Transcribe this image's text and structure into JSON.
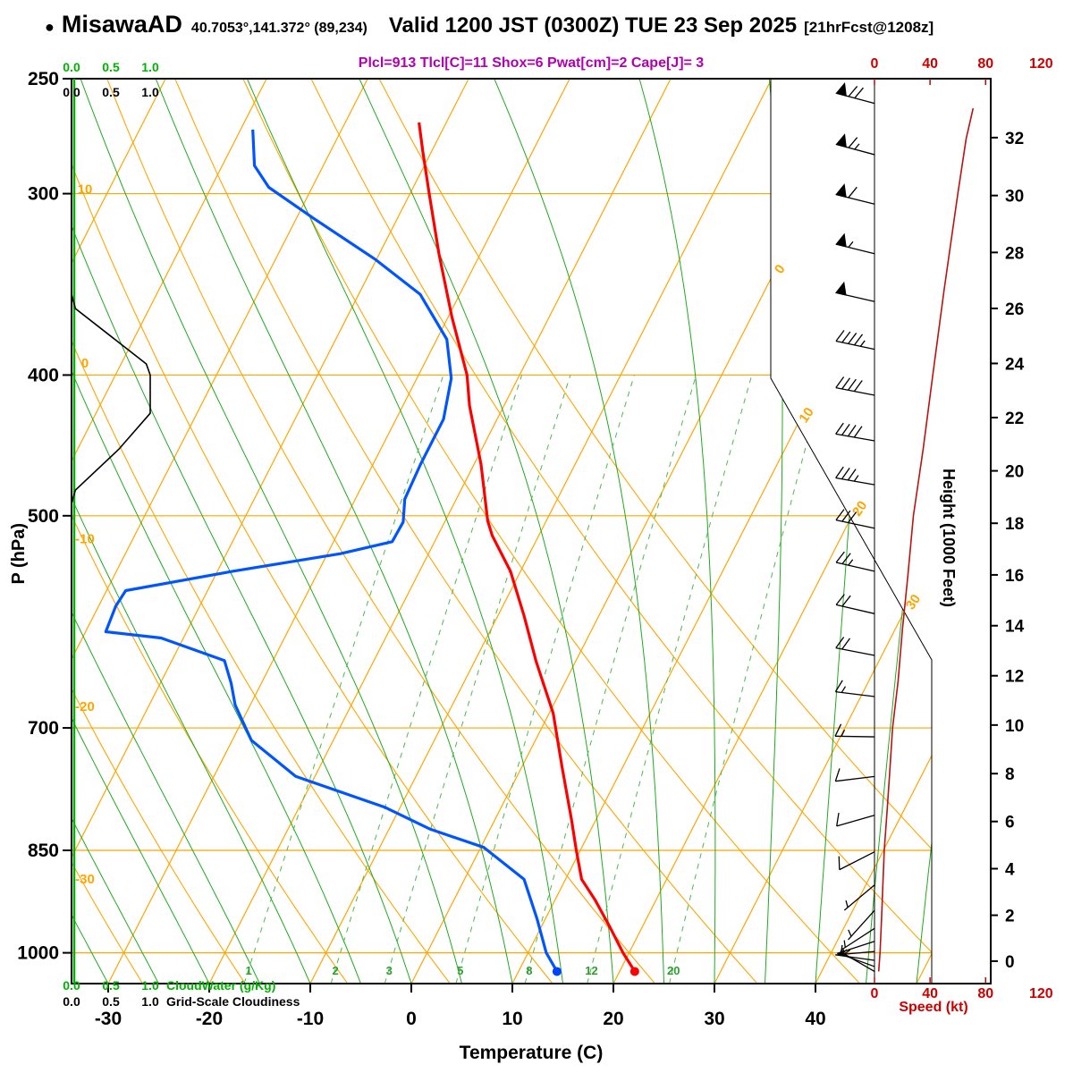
{
  "header": {
    "bullet": "●",
    "station": "MisawaAD",
    "coords": "40.7053°,141.372° (89,234)",
    "valid": "Valid 1200 JST (0300Z) TUE 23 Sep 2025",
    "fcst": "[21hrFcst@1208z]",
    "indices": "Plcl=913 Tlcl[C]=11 Shox=6 Pwat[cm]=2 Cape[J]= 3",
    "indices_values": {
      "plcl_hpa": 913,
      "tlcl_c": 11,
      "showalter": 6,
      "pwat_cm": 2,
      "cape_j": 3
    }
  },
  "axes": {
    "pressure": {
      "label": "P (hPa)",
      "ticks": [
        250,
        300,
        400,
        500,
        700,
        850,
        1000
      ],
      "range": [
        250,
        1050
      ],
      "scale": "log"
    },
    "temperature": {
      "label": "Temperature (C)",
      "ticks": [
        -30,
        -20,
        -10,
        0,
        10,
        20,
        30,
        40
      ]
    },
    "height": {
      "label": "Height (1000 Feet)",
      "ticks": [
        0,
        2,
        4,
        6,
        8,
        10,
        12,
        14,
        16,
        18,
        20,
        22,
        24,
        26,
        28,
        30,
        32
      ]
    },
    "speed": {
      "label": "Speed (kt)",
      "ticks": [
        0,
        40,
        80,
        120
      ]
    },
    "dry_adiabat_labels_c": [
      10,
      0,
      -10,
      -20,
      -30
    ],
    "isotherm_labels_c": [
      0,
      10,
      20,
      30
    ],
    "mixing_ratio_labels_g_kg": [
      1,
      2,
      3,
      5,
      8,
      12,
      20
    ]
  },
  "legends": {
    "cloudwater": {
      "scale": [
        "0.0",
        "0.5",
        "1.0"
      ],
      "label": "CloudWater (g/Kg)"
    },
    "cloudiness": {
      "scale": [
        "0.0",
        "0.5",
        "1.0"
      ],
      "label": "Grid-Scale Cloudiness"
    }
  },
  "chart_data": {
    "type": "line",
    "subtype": "skew-t-log-p-sounding",
    "title": "MisawaAD sounding valid 1200 JST (0300Z) TUE 23 Sep 2025",
    "x_axis": {
      "label": "Temperature (C)",
      "range": [
        -35,
        45
      ]
    },
    "y_axis": {
      "label": "P (hPa)",
      "range": [
        1050,
        250
      ],
      "scale": "log"
    },
    "background": {
      "isotherms_c": {
        "min": -80,
        "max": 50,
        "step": 10
      },
      "dry_adiabats_c": {
        "min": -60,
        "max": 60,
        "step": 10
      },
      "moist_adiabats_start_c": {
        "min": -35,
        "max": 50,
        "step": 5
      },
      "mixing_ratio_g_kg": [
        1,
        2,
        3,
        5,
        8,
        12,
        20
      ]
    },
    "series": [
      {
        "name": "temperature",
        "label": "Temperature (C)",
        "color": "#ff0000",
        "points": [
          [
            1030,
            21.5
          ],
          [
            1000,
            19.4
          ],
          [
            960,
            16.8
          ],
          [
            920,
            14.0
          ],
          [
            890,
            11.6
          ],
          [
            850,
            9.6
          ],
          [
            810,
            7.6
          ],
          [
            745,
            4.0
          ],
          [
            684,
            0.4
          ],
          [
            630,
            -3.9
          ],
          [
            586,
            -7.4
          ],
          [
            546,
            -11.0
          ],
          [
            516,
            -14.6
          ],
          [
            504,
            -15.8
          ],
          [
            461,
            -19.3
          ],
          [
            420,
            -23.4
          ],
          [
            400,
            -25.2
          ],
          [
            365,
            -29.6
          ],
          [
            330,
            -34.1
          ],
          [
            300,
            -38.1
          ],
          [
            281,
            -40.8
          ],
          [
            268,
            -42.7
          ]
        ]
      },
      {
        "name": "dewpoint",
        "label": "Dew point (C)",
        "color": "#0055ff",
        "points": [
          [
            1030,
            13.8
          ],
          [
            1000,
            11.8
          ],
          [
            948,
            9.2
          ],
          [
            890,
            5.9
          ],
          [
            846,
            0.3
          ],
          [
            822,
            -5.9
          ],
          [
            794,
            -11.5
          ],
          [
            756,
            -21.9
          ],
          [
            714,
            -28.1
          ],
          [
            675,
            -31.5
          ],
          [
            652,
            -33.0
          ],
          [
            629,
            -34.8
          ],
          [
            607,
            -42.2
          ],
          [
            601,
            -48.0
          ],
          [
            577,
            -48.3
          ],
          [
            563,
            -48.1
          ],
          [
            546,
            -38.5
          ],
          [
            531,
            -28.7
          ],
          [
            521,
            -24.2
          ],
          [
            505,
            -24.1
          ],
          [
            487,
            -25.1
          ],
          [
            461,
            -25.3
          ],
          [
            429,
            -25.3
          ],
          [
            402,
            -26.6
          ],
          [
            378,
            -29.0
          ],
          [
            352,
            -33.9
          ],
          [
            333,
            -40.1
          ],
          [
            312,
            -48.3
          ],
          [
            297,
            -54.3
          ],
          [
            287,
            -56.8
          ],
          [
            271,
            -58.8
          ]
        ]
      },
      {
        "name": "wind_speed_kt",
        "label": "Speed (kt)",
        "color": "#bb1111",
        "points": [
          [
            1030,
            3
          ],
          [
            1000,
            4
          ],
          [
            950,
            5
          ],
          [
            900,
            6
          ],
          [
            850,
            7
          ],
          [
            800,
            9
          ],
          [
            750,
            11
          ],
          [
            700,
            13
          ],
          [
            650,
            17
          ],
          [
            600,
            20
          ],
          [
            550,
            24
          ],
          [
            500,
            28
          ],
          [
            450,
            35
          ],
          [
            400,
            42
          ],
          [
            350,
            50
          ],
          [
            300,
            60
          ],
          [
            275,
            66
          ],
          [
            262,
            71
          ]
        ]
      },
      {
        "name": "grid_scale_cloudiness",
        "label": "Grid-Scale Cloudiness",
        "color": "#000000",
        "points": [
          [
            250,
            0
          ],
          [
            352,
            0
          ],
          [
            360,
            0.05
          ],
          [
            393,
            0.95
          ],
          [
            400,
            1.0
          ],
          [
            425,
            1.0
          ],
          [
            450,
            0.6
          ],
          [
            480,
            0.05
          ],
          [
            490,
            0
          ],
          [
            1050,
            0
          ]
        ]
      },
      {
        "name": "cloud_water",
        "label": "CloudWater (g/Kg)",
        "color": "#00b300",
        "points": [
          [
            250,
            0
          ],
          [
            1050,
            0
          ]
        ]
      }
    ],
    "wind_barbs": [
      {
        "p": 260,
        "dir": 285,
        "kt": 70
      },
      {
        "p": 282,
        "dir": 285,
        "kt": 65
      },
      {
        "p": 305,
        "dir": 284,
        "kt": 60
      },
      {
        "p": 330,
        "dir": 284,
        "kt": 55
      },
      {
        "p": 356,
        "dir": 283,
        "kt": 50
      },
      {
        "p": 384,
        "dir": 282,
        "kt": 45
      },
      {
        "p": 413,
        "dir": 281,
        "kt": 42
      },
      {
        "p": 444,
        "dir": 280,
        "kt": 38
      },
      {
        "p": 476,
        "dir": 280,
        "kt": 33
      },
      {
        "p": 510,
        "dir": 282,
        "kt": 28
      },
      {
        "p": 546,
        "dir": 283,
        "kt": 25
      },
      {
        "p": 584,
        "dir": 283,
        "kt": 21
      },
      {
        "p": 624,
        "dir": 281,
        "kt": 18
      },
      {
        "p": 666,
        "dir": 277,
        "kt": 15
      },
      {
        "p": 710,
        "dir": 271,
        "kt": 13
      },
      {
        "p": 756,
        "dir": 263,
        "kt": 11
      },
      {
        "p": 804,
        "dir": 254,
        "kt": 9
      },
      {
        "p": 852,
        "dir": 243,
        "kt": 8
      },
      {
        "p": 898,
        "dir": 230,
        "kt": 7
      },
      {
        "p": 935,
        "dir": 222,
        "kt": 6
      },
      {
        "p": 962,
        "dir": 237,
        "kt": 6
      },
      {
        "p": 982,
        "dir": 252,
        "kt": 5
      },
      {
        "p": 998,
        "dir": 265,
        "kt": 5
      },
      {
        "p": 1012,
        "dir": 278,
        "kt": 5
      },
      {
        "p": 1022,
        "dir": 290,
        "kt": 4
      },
      {
        "p": 1030,
        "dir": 300,
        "kt": 4
      }
    ],
    "surface_markers": [
      {
        "name": "temperature",
        "p": 1030,
        "t": 21.5,
        "color": "#ff0000"
      },
      {
        "name": "dewpoint",
        "p": 1030,
        "t": 13.8,
        "color": "#0044ff"
      }
    ]
  },
  "colors": {
    "isotherm": "#ffa500",
    "pressure_line": "#ffa500",
    "dry_adiabat": "#ffa500",
    "moist_adiabat": "#1faa1f",
    "mixing_ratio": "#4db84d",
    "mixing_label": "#2f9e2f",
    "temperature": "#ff0000",
    "dewpoint": "#0055ff",
    "wind_speed": "#bb1111",
    "cloudwater": "#00b300",
    "cloudiness": "#000000",
    "barbs": "#000000",
    "frame": "#000000",
    "speed_axis": "#cc0000",
    "indices_text": "#b000b0"
  }
}
